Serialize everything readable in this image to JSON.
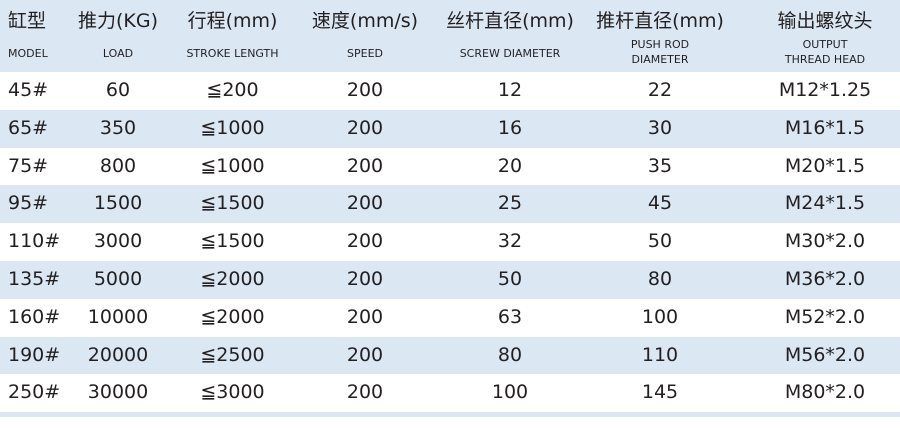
{
  "colors": {
    "header_bg": "#dbe8f4",
    "alt_row_bg": "#dbe8f4",
    "text": "#231f20"
  },
  "columns": [
    {
      "zh": "缸型",
      "en": "MODEL"
    },
    {
      "zh": "推力(KG)",
      "en": "LOAD"
    },
    {
      "zh": "行程(mm)",
      "en": "STROKE LENGTH"
    },
    {
      "zh": "速度(mm/s)",
      "en": "SPEED"
    },
    {
      "zh": "丝杆直径(mm)",
      "en": "SCREW DIAMETER"
    },
    {
      "zh": "推杆直径(mm)",
      "en": "PUSH ROD DIAMETER",
      "en1": "PUSH ROD",
      "en2": "DIAMETER"
    },
    {
      "zh": "输出螺纹头",
      "en": "OUTPUT THREAD HEAD",
      "en1": "OUTPUT",
      "en2": "THREAD HEAD"
    }
  ],
  "rows": [
    [
      "45#",
      "60",
      "≦200",
      "200",
      "12",
      "22",
      "M12*1.25"
    ],
    [
      "65#",
      "350",
      "≦1000",
      "200",
      "16",
      "30",
      "M16*1.5"
    ],
    [
      "75#",
      "800",
      "≦1000",
      "200",
      "20",
      "35",
      "M20*1.5"
    ],
    [
      "95#",
      "1500",
      "≦1500",
      "200",
      "25",
      "45",
      "M24*1.5"
    ],
    [
      "110#",
      "3000",
      "≦1500",
      "200",
      "32",
      "50",
      "M30*2.0"
    ],
    [
      "135#",
      "5000",
      "≦2000",
      "200",
      "50",
      "80",
      "M36*2.0"
    ],
    [
      "160#",
      "10000",
      "≦2000",
      "200",
      "63",
      "100",
      "M52*2.0"
    ],
    [
      "190#",
      "20000",
      "≦2500",
      "200",
      "80",
      "110",
      "M56*2.0"
    ],
    [
      "250#",
      "30000",
      "≦3000",
      "200",
      "100",
      "145",
      "M80*2.0"
    ]
  ]
}
